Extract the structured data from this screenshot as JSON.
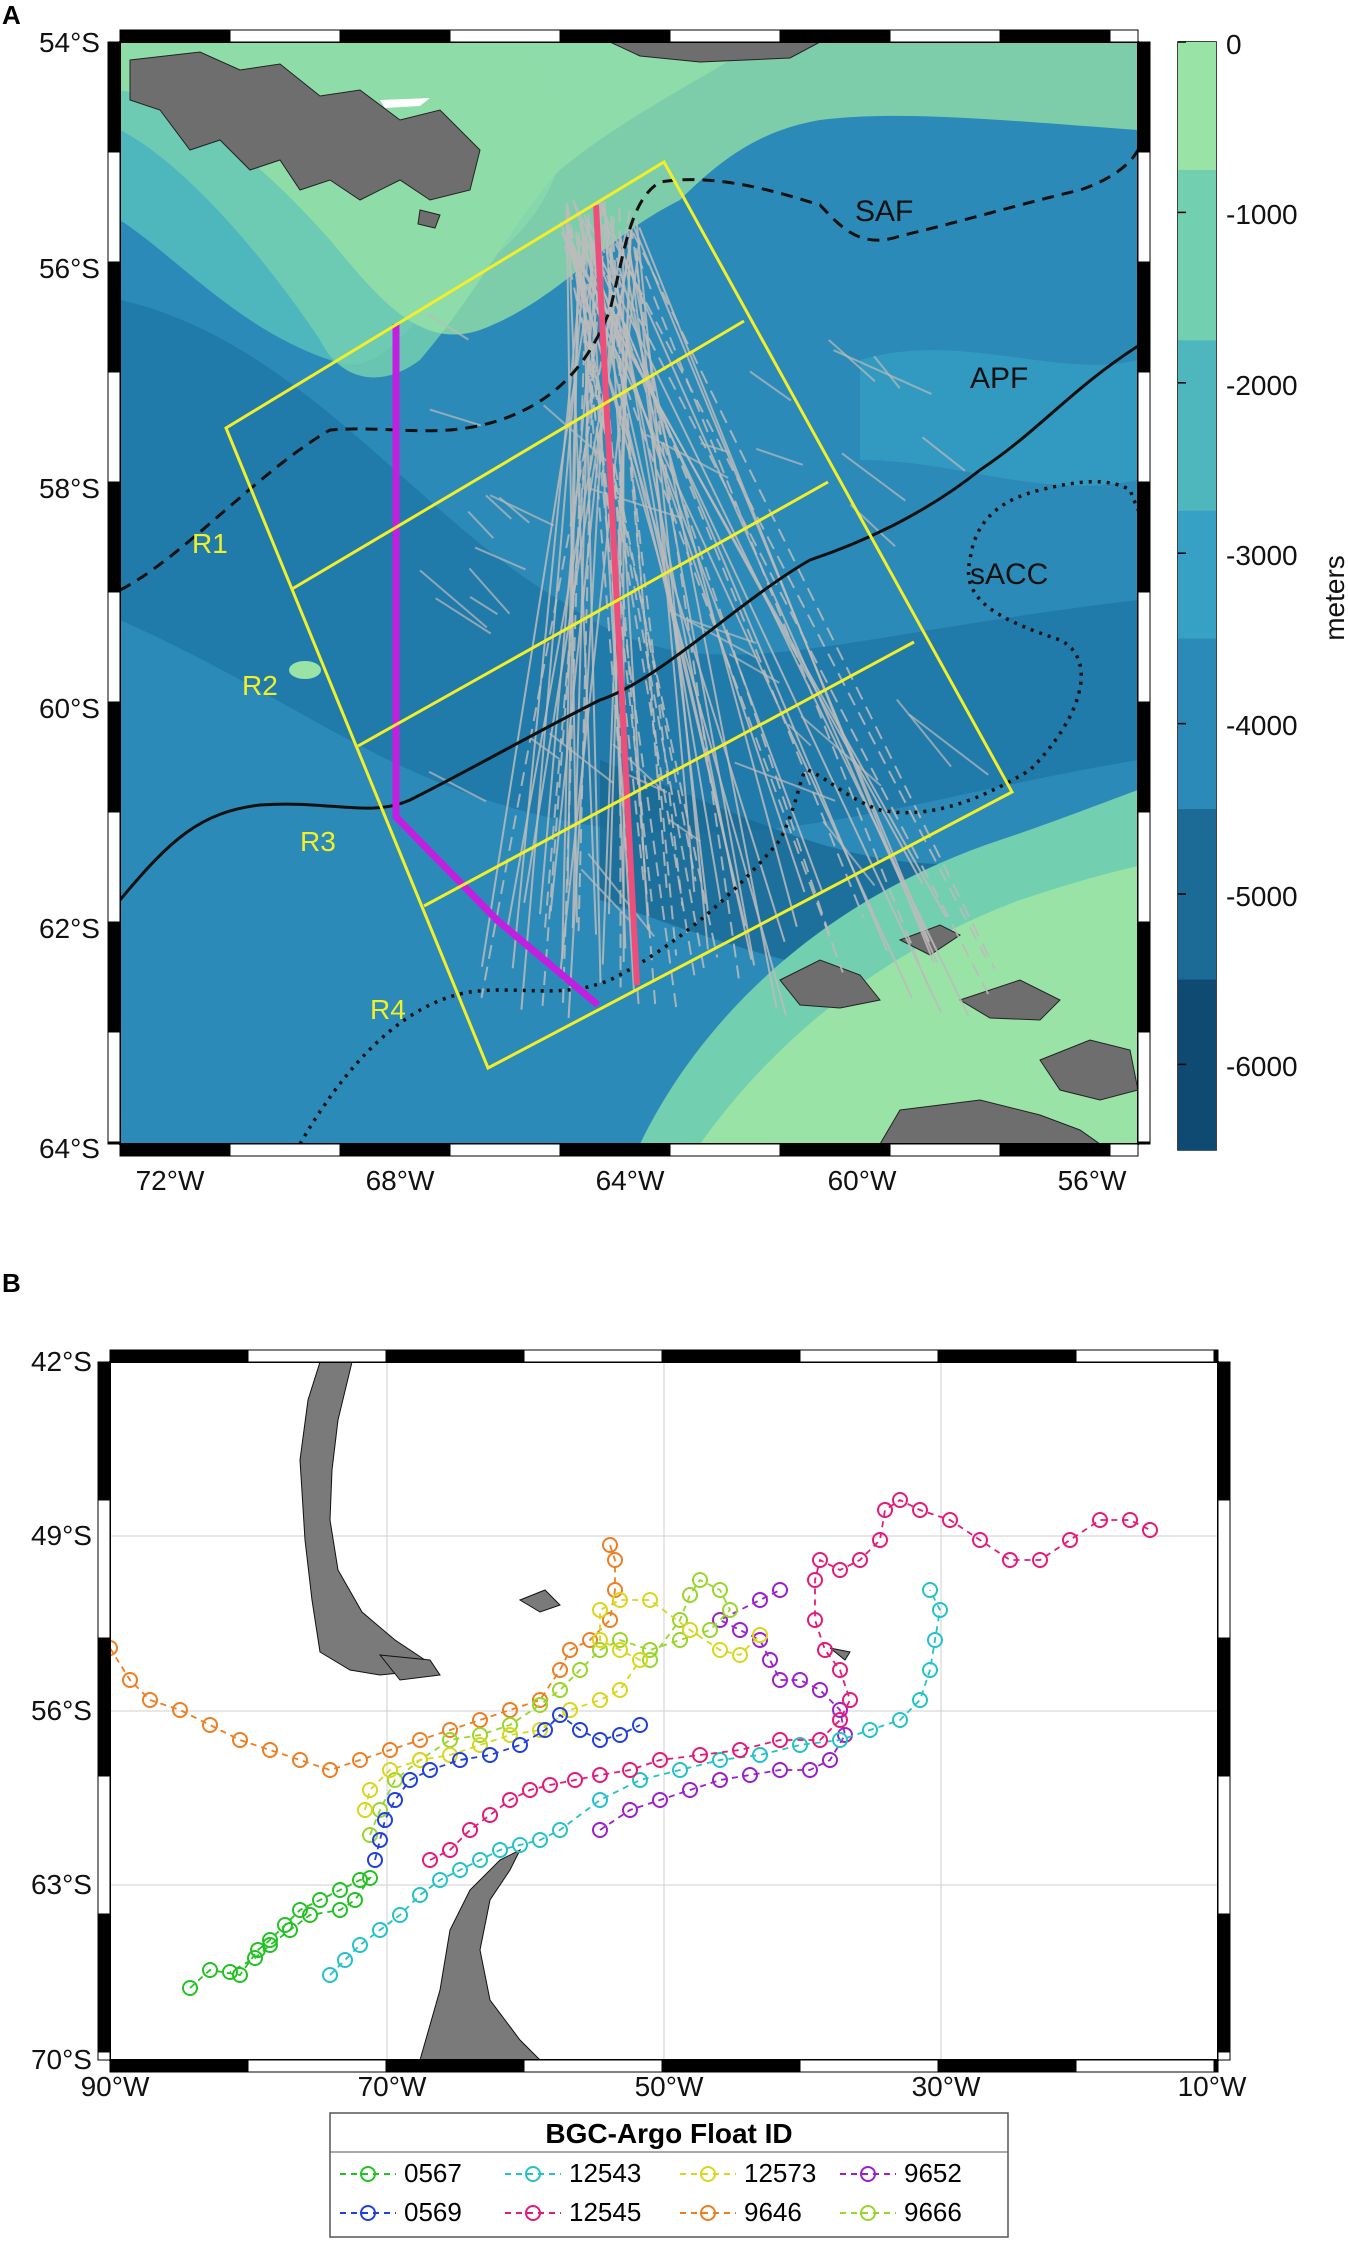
{
  "panel_a": {
    "letter": "A",
    "lat_ticks": [
      "54°S",
      "56°S",
      "58°S",
      "60°S",
      "62°S",
      "64°S"
    ],
    "lon_ticks": [
      "72°W",
      "68°W",
      "64°W",
      "60°W",
      "56°W"
    ],
    "regions": [
      "R1",
      "R2",
      "R3",
      "R4"
    ],
    "fronts": [
      "SAF",
      "APF",
      "sACC"
    ],
    "colorbar": {
      "label": "meters",
      "ticks": [
        "0",
        "-1000",
        "-2000",
        "-3000",
        "-4000",
        "-5000",
        "-6000"
      ],
      "colors": [
        "#0f4a73",
        "#1b6b96",
        "#2b8ab8",
        "#36a1c4",
        "#4eb7be",
        "#72cfb0",
        "#9ae3a6"
      ]
    },
    "colors": {
      "region_box": "#f2ef2a",
      "transect_magenta": "#c21fe0",
      "transect_pink": "#ee4f7a",
      "ship_tracks": "#bcbcbc",
      "land": "#6e6e6e"
    }
  },
  "panel_b": {
    "letter": "B",
    "lat_ticks": [
      "42°S",
      "49°S",
      "56°S",
      "63°S",
      "70°S"
    ],
    "lon_ticks": [
      "90°W",
      "70°W",
      "50°W",
      "30°W",
      "10°W"
    ],
    "legend": {
      "title": "BGC-Argo Float ID",
      "floats": [
        {
          "id": "0567",
          "color": "#23c223"
        },
        {
          "id": "12543",
          "color": "#22c2c8"
        },
        {
          "id": "12573",
          "color": "#d9d61c"
        },
        {
          "id": "9652",
          "color": "#9b1fcc"
        },
        {
          "id": "0569",
          "color": "#1f3fe0"
        },
        {
          "id": "12545",
          "color": "#e6197a"
        },
        {
          "id": "9646",
          "color": "#ef7d22"
        },
        {
          "id": "9666",
          "color": "#98d62a"
        }
      ]
    },
    "colors": {
      "land": "#7a7a7a",
      "grid": "#cfcfcf"
    }
  }
}
